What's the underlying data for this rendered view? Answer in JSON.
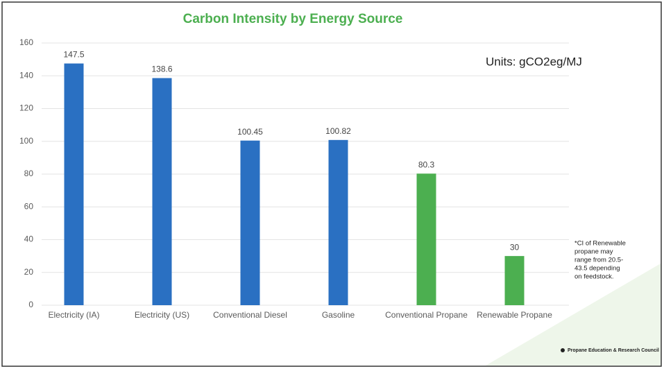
{
  "chart_data": {
    "type": "bar",
    "title": "Carbon Intensity by Energy Source",
    "annotation": "Units: gCO2eg/MJ",
    "footnote": [
      "*CI of Renewable",
      "propane may",
      "range from 20.5-",
      "43.5 depending",
      "on  feedstock."
    ],
    "source": "Propane Education & Research Council",
    "categories": [
      "Electricity (IA)",
      "Electricity (US)",
      "Conventional Diesel",
      "Gasoline",
      "Conventional Propane",
      "Renewable Propane"
    ],
    "values": [
      147.5,
      138.6,
      100.45,
      100.82,
      80.3,
      30
    ],
    "colors": [
      "#2a70c2",
      "#2a70c2",
      "#2a70c2",
      "#2a70c2",
      "#4caf50",
      "#4caf50"
    ],
    "ylim": [
      0,
      160
    ],
    "yticks": [
      0,
      20,
      40,
      60,
      80,
      100,
      120,
      140,
      160
    ],
    "grid": true
  }
}
